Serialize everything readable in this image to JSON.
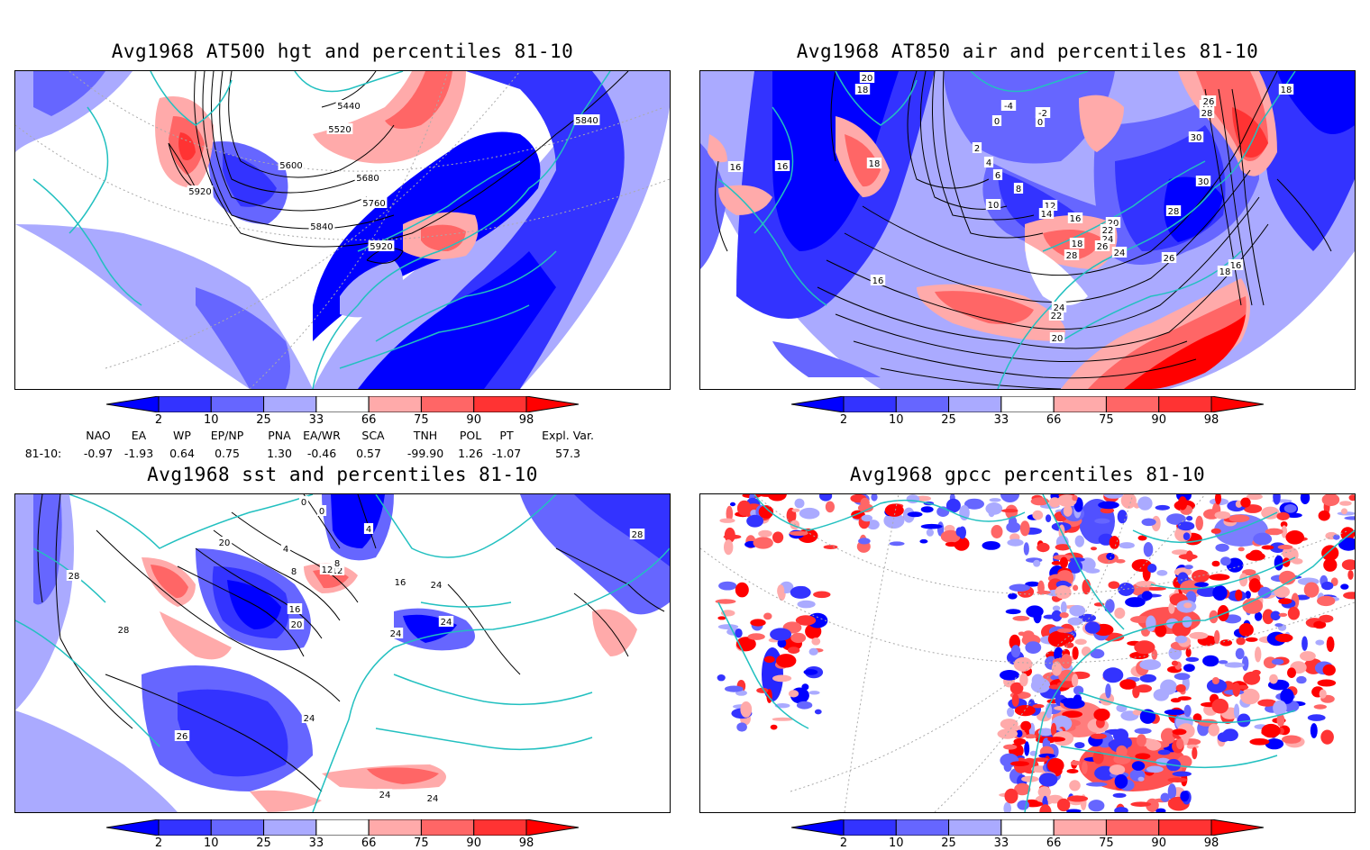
{
  "panels": [
    {
      "id": "hgt500",
      "title": "Avg1968 AT500 hgt and percentiles 81-10",
      "contour_labels": [
        "5440",
        "5520",
        "5600",
        "5680",
        "5760",
        "5840",
        "5840",
        "5920",
        "5920"
      ]
    },
    {
      "id": "air850",
      "title": "Avg1968 AT850 air and percentiles 81-10",
      "contour_labels": [
        "20",
        "18",
        "-4",
        "-2",
        "0",
        "0",
        "2",
        "4",
        "6",
        "8",
        "10",
        "12",
        "14",
        "16",
        "18",
        "16",
        "16",
        "16",
        "18",
        "20",
        "22",
        "24",
        "24",
        "26",
        "28",
        "28",
        "26",
        "28",
        "30",
        "30",
        "28",
        "26",
        "16",
        "18",
        "18",
        "20",
        "22",
        "24"
      ]
    },
    {
      "id": "sst",
      "title": "Avg1968 sst and percentiles 81-10",
      "contour_labels": [
        "0",
        "0",
        "4",
        "12",
        "4",
        "8",
        "8",
        "12",
        "16",
        "16",
        "20",
        "20",
        "24",
        "28",
        "28",
        "24",
        "24",
        "24",
        "24",
        "26",
        "28",
        "24"
      ]
    },
    {
      "id": "gpcc",
      "title": "Avg1968 gpcc percentiles 81-10",
      "contour_labels": []
    }
  ],
  "colorbar": {
    "labels": [
      "2",
      "10",
      "25",
      "33",
      "66",
      "75",
      "90",
      "98"
    ],
    "colors": [
      "#0000ff",
      "#3333ff",
      "#6666ff",
      "#aaaaff",
      "#ffffff",
      "#ffaaaa",
      "#ff6666",
      "#ff3333",
      "#ff0000"
    ]
  },
  "indices": {
    "headers": [
      "NAO",
      "EA",
      "WP",
      "EP/NP",
      "PNA",
      "EA/WR",
      "SCA",
      "TNH",
      "POL",
      "PT",
      "Expl. Var."
    ],
    "row_label": "81-10:",
    "values": [
      "-0.97",
      "-1.93",
      "0.64",
      "0.75",
      "1.30",
      "-0.46",
      "0.57",
      "-99.90",
      "1.26",
      "-1.07",
      "57.3"
    ]
  },
  "map_colors": {
    "coast": "#22c0c0",
    "blue_dark": "#0000ff",
    "blue": "#3333ff",
    "blue_mid": "#6666ff",
    "blue_light": "#aaaaff",
    "red_light": "#ffaaaa",
    "red": "#ff6666",
    "red_dark": "#ff0000",
    "grid": "#aaaaaa"
  }
}
